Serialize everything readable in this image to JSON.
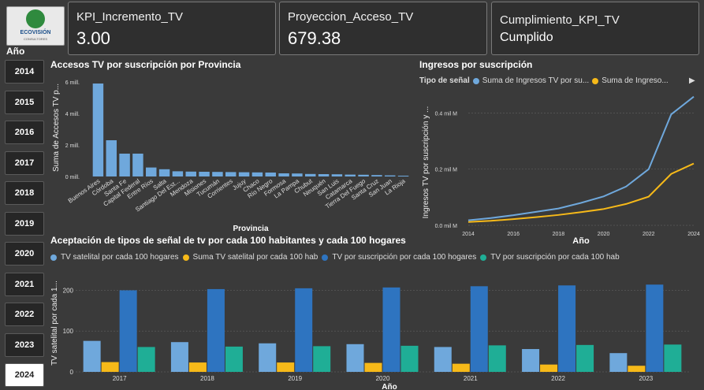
{
  "logo": {
    "brand": "ECOVISIÓN",
    "subtitle": "CONSULTORES"
  },
  "kpis": [
    {
      "label": "KPI_Incremento_TV",
      "value": "3.00"
    },
    {
      "label": "Proyeccion_Acceso_TV",
      "value": "679.38"
    },
    {
      "label": "Cumplimiento_KPI_TV",
      "value": "Cumplido"
    }
  ],
  "year_filter": {
    "title": "Año",
    "years": [
      "2014",
      "2015",
      "2016",
      "2017",
      "2018",
      "2019",
      "2020",
      "2021",
      "2022",
      "2023",
      "2024"
    ],
    "selected": "2024"
  },
  "colors": {
    "light_blue": "#6fa8dc",
    "orange": "#f6b919",
    "dark_blue": "#2e74c0",
    "teal": "#1fae96",
    "bar_single": "#6fa8dc"
  },
  "chart_data": [
    {
      "type": "bar",
      "title": "Accesos TV por suscripción por Provincia",
      "xlabel": "Provincia",
      "ylabel": "Suma de Accesos TV p...",
      "ytick_labels": [
        "0 mill.",
        "2 mill.",
        "4 mill.",
        "6 mill."
      ],
      "yticks": [
        0,
        2000000,
        4000000,
        6000000
      ],
      "ylim": [
        0,
        6200000
      ],
      "categories": [
        "Buenos Aires",
        "Córdoba",
        "Santa Fe",
        "Capital Federal",
        "Entre Ríos",
        "Salta",
        "Santiago Del Est...",
        "Mendoza",
        "Misiones",
        "Tucumán",
        "Corrientes",
        "Jujuy",
        "Chaco",
        "Río Negro",
        "Formosa",
        "La Pampa",
        "Chubut",
        "Neuquén",
        "San Luis",
        "Catamarca",
        "Tierra Del Fuego",
        "Santa Cruz",
        "San Juan",
        "La Rioja"
      ],
      "values": [
        5900000,
        2300000,
        1450000,
        1450000,
        570000,
        460000,
        330000,
        310000,
        300000,
        290000,
        280000,
        270000,
        260000,
        250000,
        200000,
        190000,
        160000,
        150000,
        140000,
        120000,
        110000,
        90000,
        70000,
        50000
      ]
    },
    {
      "type": "line",
      "title": "Ingresos por suscripción",
      "legend_title": "Tipo de señal",
      "xlabel": "Año",
      "ylabel": "Ingresos TV por suscripción y ...",
      "x": [
        2014,
        2015,
        2016,
        2017,
        2018,
        2019,
        2020,
        2021,
        2022,
        2023,
        2024
      ],
      "xtick_labels": [
        "2014",
        "2016",
        "2018",
        "2020",
        "2022",
        "2024"
      ],
      "ytick_labels": [
        "0.0 mil M",
        "0.2 mil M",
        "0.4 mil M"
      ],
      "yticks": [
        0,
        200,
        400
      ],
      "ylim": [
        0,
        460
      ],
      "series": [
        {
          "name": "Suma de Ingresos TV por su...",
          "color": "#6fa8dc",
          "values": [
            18,
            26,
            36,
            48,
            60,
            80,
            103,
            138,
            200,
            395,
            458
          ]
        },
        {
          "name": "Suma de Ingreso...",
          "color": "#f6b919",
          "values": [
            12,
            16,
            22,
            29,
            37,
            47,
            58,
            76,
            102,
            183,
            220
          ]
        }
      ]
    },
    {
      "type": "bar",
      "title": "Aceptación de tipos de señal de tv por cada 100 habitantes y cada 100 hogares",
      "xlabel": "Año",
      "ylabel": "TV satelital por cada 1...",
      "categories": [
        "2017",
        "2018",
        "2019",
        "2020",
        "2021",
        "2022",
        "2023"
      ],
      "ytick_labels": [
        "0",
        "100",
        "200"
      ],
      "yticks": [
        0,
        100,
        200
      ],
      "ylim": [
        0,
        255
      ],
      "series": [
        {
          "name": "TV satelital por cada 100 hogares",
          "color": "#6fa8dc",
          "values": [
            76,
            73,
            70,
            68,
            61,
            56,
            46
          ]
        },
        {
          "name": "Suma TV satelital por cada 100 hab",
          "color": "#f6b919",
          "values": [
            24,
            23,
            23,
            22,
            20,
            18,
            15
          ]
        },
        {
          "name": "TV por suscripción por cada 100 hogares",
          "color": "#2e74c0",
          "values": [
            200,
            203,
            205,
            207,
            210,
            212,
            214
          ]
        },
        {
          "name": "TV por suscripción por cada 100 hab",
          "color": "#1fae96",
          "values": [
            61,
            62,
            63,
            64,
            65,
            66,
            67
          ]
        }
      ]
    }
  ]
}
